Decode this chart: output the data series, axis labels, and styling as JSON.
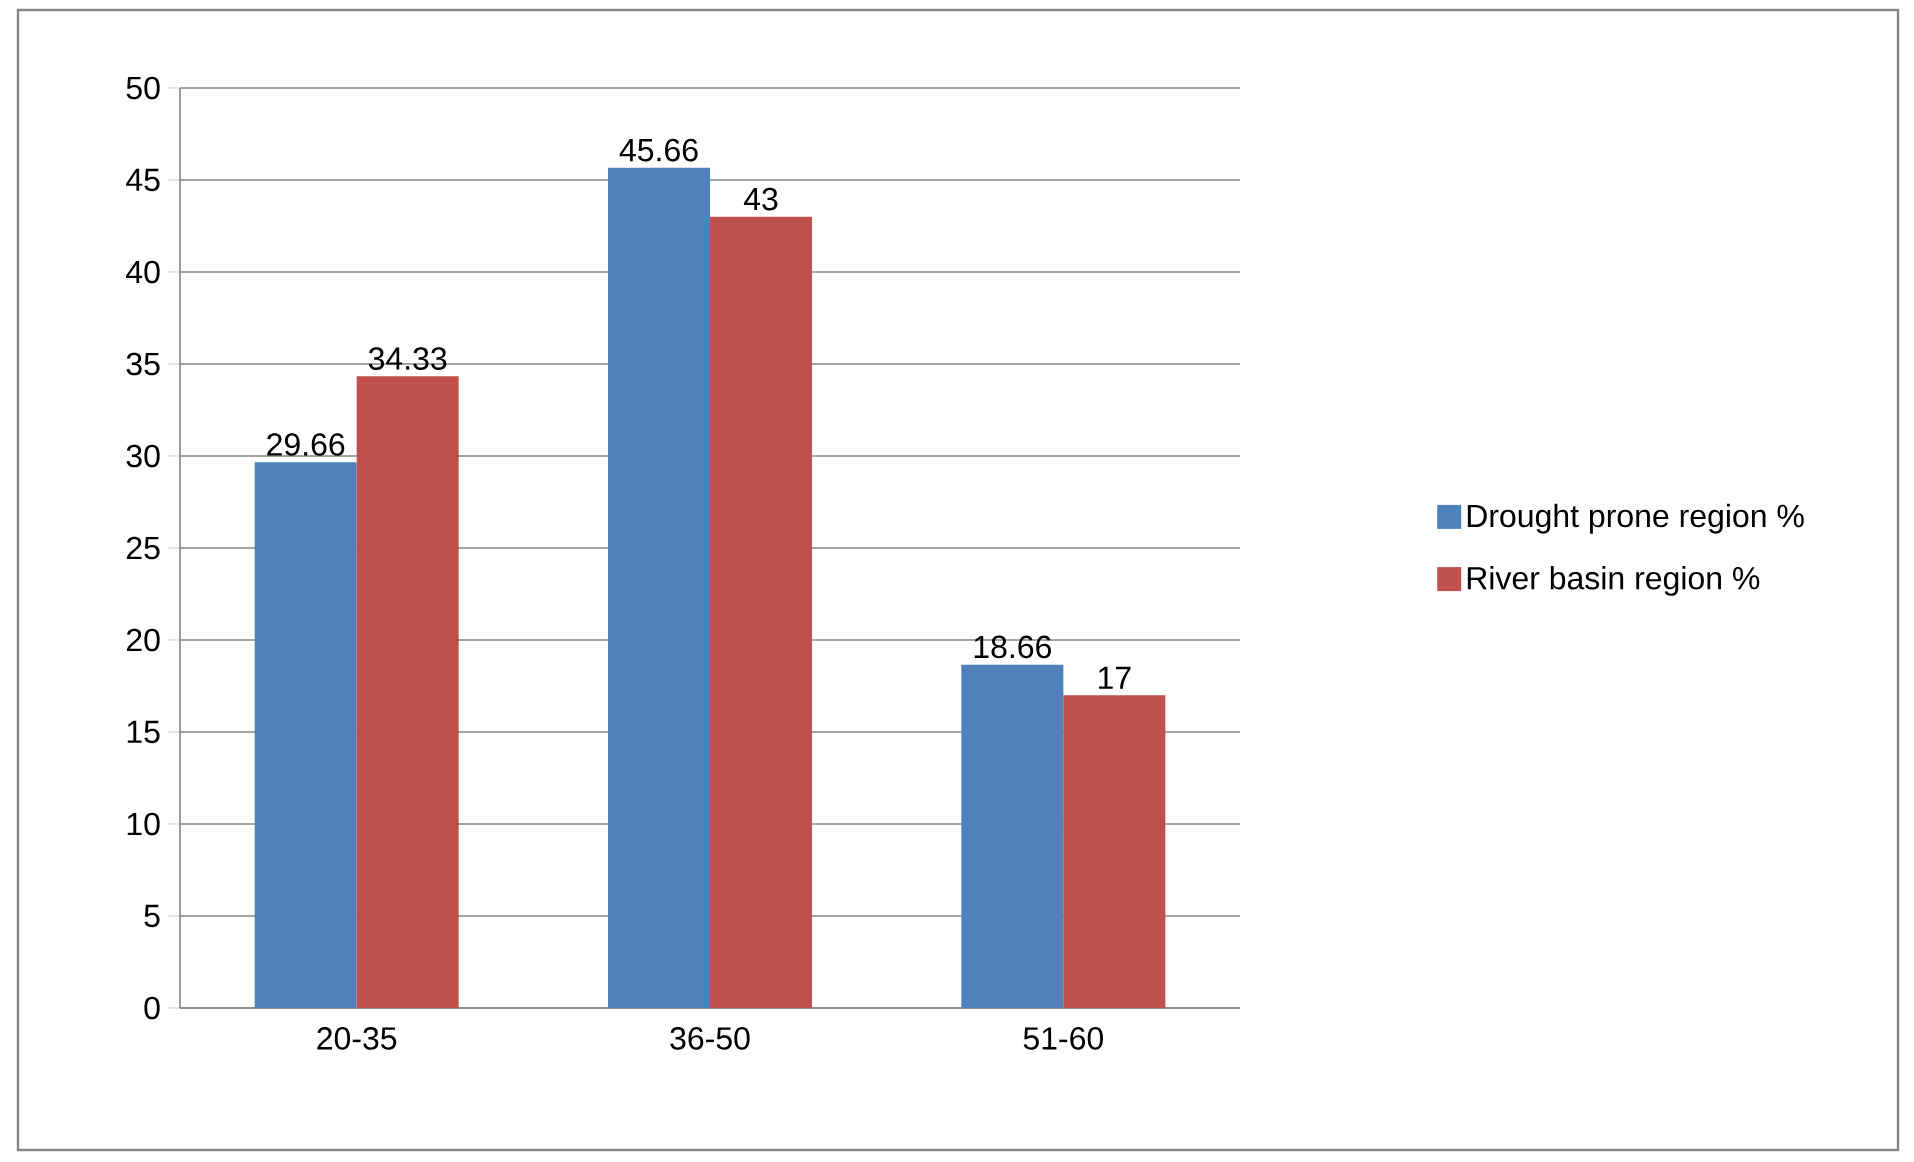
{
  "chart_data": {
    "type": "bar",
    "categories": [
      "20-35",
      "36-50",
      "51-60"
    ],
    "series": [
      {
        "name": "Drought prone region %",
        "color": "#4f81bd",
        "values": [
          29.66,
          45.66,
          18.66
        ]
      },
      {
        "name": "River basin region %",
        "color": "#c0504d",
        "values": [
          34.33,
          43,
          17
        ]
      }
    ],
    "ylim": [
      0,
      50
    ],
    "yticks": [
      0,
      5,
      10,
      15,
      20,
      25,
      30,
      35,
      40,
      45,
      50
    ],
    "grid": "y",
    "legend": "right",
    "data_labels": true
  }
}
